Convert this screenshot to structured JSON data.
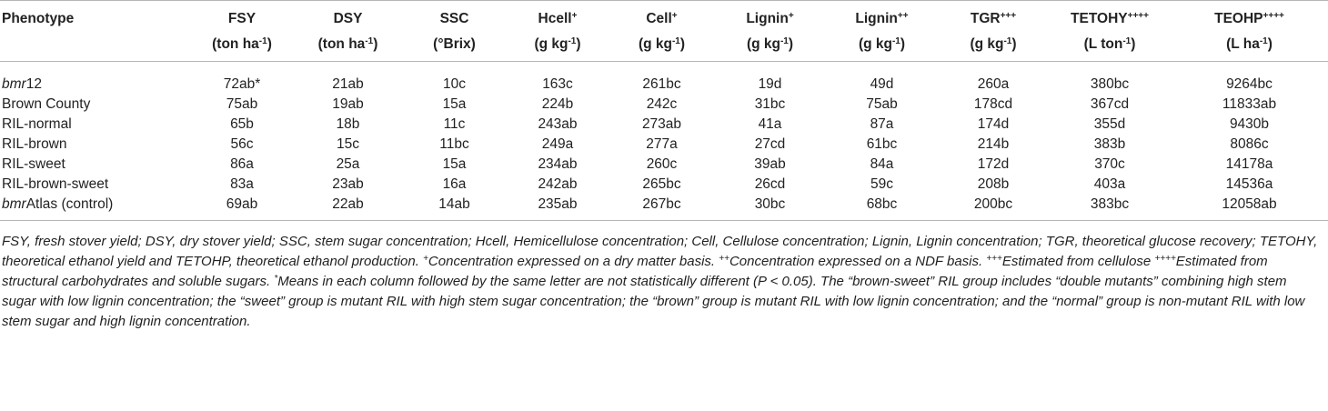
{
  "table": {
    "headers": [
      {
        "name": "Phenotype"
      },
      {
        "name": "FSY",
        "unit": {
          "pre": "(ton ha",
          "sup": "-1",
          "post": ")"
        }
      },
      {
        "name": "DSY",
        "unit": {
          "pre": "(ton ha",
          "sup": "-1",
          "post": ")"
        }
      },
      {
        "name": "SSC",
        "unit": {
          "pre": "(°Brix)"
        }
      },
      {
        "name": "Hcell",
        "sup": "+",
        "unit": {
          "pre": "(g kg",
          "sup": "-1",
          "post": ")"
        }
      },
      {
        "name": "Cell",
        "sup": "+",
        "unit": {
          "pre": "(g kg",
          "sup": "-1",
          "post": ")"
        }
      },
      {
        "name": "Lignin",
        "sup": "+",
        "unit": {
          "pre": "(g kg",
          "sup": "-1",
          "post": ")"
        }
      },
      {
        "name": "Lignin",
        "sup": "++",
        "unit": {
          "pre": "(g kg",
          "sup": "-1",
          "post": ")"
        }
      },
      {
        "name": "TGR",
        "sup": "+++",
        "unit": {
          "pre": "(g kg",
          "sup": "-1",
          "post": ")"
        }
      },
      {
        "name": "TETOHY",
        "sup": "++++",
        "unit": {
          "pre": "(L ton",
          "sup": "-1",
          "post": ")"
        }
      },
      {
        "name": "TEOHP",
        "sup": "++++",
        "unit": {
          "pre": "(L ha",
          "sup": "-1",
          "post": ")"
        }
      }
    ],
    "rows": [
      [
        {
          "italic": "bmr",
          "rest": "12"
        },
        "72ab*",
        "21ab",
        "10c",
        "163c",
        "261bc",
        "19d",
        "49d",
        "260a",
        "380bc",
        "9264bc"
      ],
      [
        "Brown County",
        "75ab",
        "19ab",
        "15a",
        "224b",
        "242c",
        "31bc",
        "75ab",
        "178cd",
        "367cd",
        "11833ab"
      ],
      [
        "RIL-normal",
        "65b",
        "18b",
        "11c",
        "243ab",
        "273ab",
        "41a",
        "87a",
        "174d",
        "355d",
        "9430b"
      ],
      [
        "RIL-brown",
        "56c",
        "15c",
        "11bc",
        "249a",
        "277a",
        "27cd",
        "61bc",
        "214b",
        "383b",
        "8086c"
      ],
      [
        "RIL-sweet",
        "86a",
        "25a",
        "15a",
        "234ab",
        "260c",
        "39ab",
        "84a",
        "172d",
        "370c",
        "14178a"
      ],
      [
        "RIL-brown-sweet",
        "83a",
        "23ab",
        "16a",
        "242ab",
        "265bc",
        "26cd",
        "59c",
        "208b",
        "403a",
        "14536a"
      ],
      [
        {
          "italic": "bmr",
          "rest": "Atlas (control)"
        },
        "69ab",
        "22ab",
        "14ab",
        "235ab",
        "267bc",
        "30bc",
        "68bc",
        "200bc",
        "383bc",
        "12058ab"
      ]
    ]
  },
  "footnote": [
    {
      "text": "FSY, fresh stover yield; DSY, dry stover yield; SSC, stem sugar concentration; Hcell, Hemicellulose concentration; Cell, Cellulose concentration; Lignin, Lignin concentration; TGR, theoretical glucose recovery; TETOHY, theoretical ethanol yield and TETOHP, theoretical ethanol production. "
    },
    {
      "sup": "+"
    },
    {
      "text": "Concentration expressed on a dry matter basis. "
    },
    {
      "sup": "++"
    },
    {
      "text": "Concentration expressed on a NDF basis. "
    },
    {
      "sup": "+++"
    },
    {
      "text": "Estimated from cellulose "
    },
    {
      "sup": "++++"
    },
    {
      "text": "Estimated from structural carbohydrates and soluble sugars. "
    },
    {
      "sup": "*"
    },
    {
      "text": "Means in each column followed by the same letter are not statistically different (P < 0.05). The “brown-sweet” RIL group includes “double mutants” combining high stem sugar with low lignin concentration; the “sweet” group is mutant RIL with high stem sugar concentration; the “brown” group is mutant RIL with low lignin concentration; and the “normal” group is non-mutant RIL with low stem sugar and high lignin concentration."
    }
  ]
}
